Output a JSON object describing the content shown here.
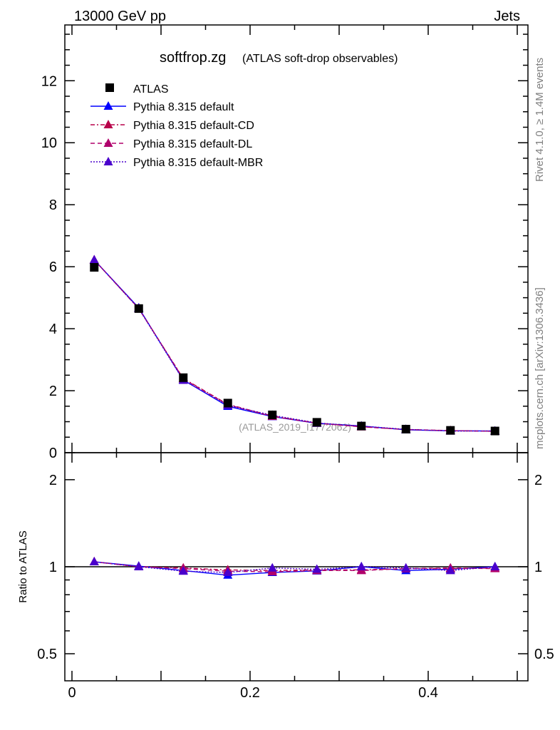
{
  "header": {
    "left": "13000 GeV pp",
    "right": "Jets"
  },
  "side_text": {
    "top": "Rivet 4.1.0, ≥ 1.4M events",
    "bottom": "mcplots.cern.ch [arXiv:1306.3436]"
  },
  "chart_data": {
    "type": "line",
    "title": "softfrop.zg",
    "subtitle": "(ATLAS soft-drop observables)",
    "watermark": "(ATLAS_2019_I1772062)",
    "xlabel": "",
    "xlim": [
      -0.008,
      0.512
    ],
    "xticks": [
      "0",
      "0.2",
      "0.4"
    ],
    "xtick_values": [
      0,
      0.2,
      0.4
    ],
    "main": {
      "ylabel": "",
      "ylim": [
        0,
        13.8
      ],
      "yticks": [
        "0",
        "2",
        "4",
        "6",
        "8",
        "10",
        "12"
      ],
      "ytick_values": [
        0,
        2,
        4,
        6,
        8,
        10,
        12
      ]
    },
    "ratio": {
      "ylabel": "Ratio to ATLAS",
      "scale": "log",
      "ylim": [
        0.403,
        2.48
      ],
      "yticks": [
        "0.5",
        "1",
        "2"
      ],
      "ytick_values": [
        0.5,
        1,
        2
      ]
    },
    "x": [
      0.025,
      0.075,
      0.125,
      0.175,
      0.225,
      0.275,
      0.325,
      0.375,
      0.425,
      0.475
    ],
    "data": {
      "name": "ATLAS",
      "values": [
        5.98,
        4.65,
        2.42,
        1.6,
        1.22,
        0.98,
        0.86,
        0.76,
        0.72,
        0.7
      ]
    },
    "series": [
      {
        "name": "Pythia 8.315 default",
        "color": "#0000ff",
        "style": "solid",
        "ratio": [
          1.04,
          1.005,
          0.97,
          0.935,
          0.955,
          0.967,
          1.0,
          0.97,
          0.98,
          1.0
        ]
      },
      {
        "name": "Pythia 8.315 default-CD",
        "color": "#b8004a",
        "style": "dashdot",
        "ratio": [
          1.04,
          1.0,
          0.99,
          0.975,
          0.97,
          0.975,
          0.975,
          0.985,
          0.985,
          0.99
        ]
      },
      {
        "name": "Pythia 8.315 default-DL",
        "color": "#b0006c",
        "style": "dashed",
        "ratio": [
          1.04,
          1.0,
          0.985,
          0.965,
          0.96,
          0.97,
          0.97,
          0.985,
          0.99,
          0.985
        ]
      },
      {
        "name": "Pythia 8.315 default-MBR",
        "color": "#4a00cc",
        "style": "dotted",
        "ratio": [
          1.04,
          1.0,
          0.965,
          0.955,
          0.99,
          0.98,
          1.0,
          0.99,
          0.97,
          1.0
        ]
      }
    ],
    "legend_position": "top-left"
  }
}
